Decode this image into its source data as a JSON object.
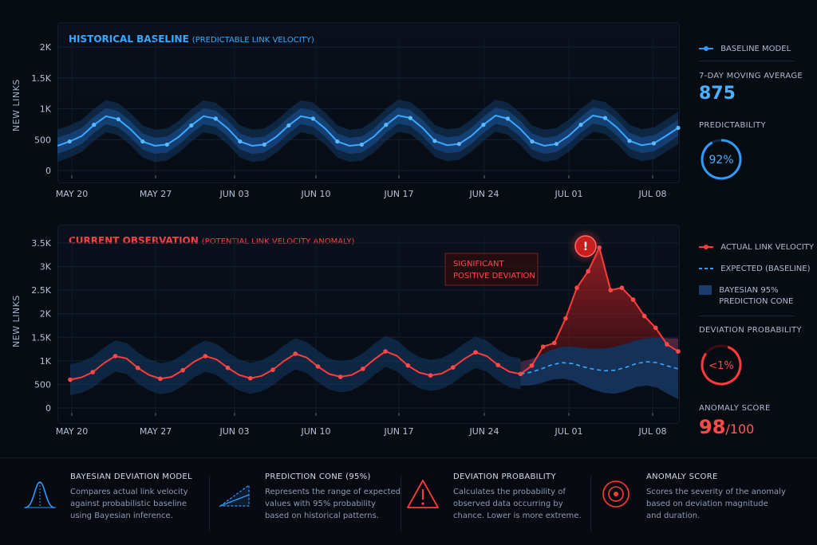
{
  "top_chart": {
    "title": "HISTORICAL BASELINE",
    "subtitle": "(PREDICTABLE LINK VELOCITY)",
    "ylabel": "NEW LINKS",
    "yticks": [
      "2K",
      "1.5K",
      "1K",
      "500",
      "0"
    ]
  },
  "bottom_chart": {
    "title": "CURRENT OBSERVATION",
    "subtitle": "(POTENTIAL LINK VELOCITY ANOMALY)",
    "ylabel": "NEW LINKS",
    "yticks": [
      "3.5K",
      "3K",
      "2.5K",
      "2K",
      "1.5K",
      "1K",
      "500",
      "0"
    ],
    "annotation_line1": "SIGNIFICANT",
    "annotation_line2": "POSITIVE DEVIATION"
  },
  "xticks": [
    "MAY 20",
    "MAY 27",
    "JUN 03",
    "JUN 10",
    "JUN 17",
    "JUN 24",
    "JUL 01",
    "JUL 08"
  ],
  "sidebar_top": {
    "legend_baseline": "BASELINE MODEL",
    "moving_avg_label": "7-DAY MOVING AVERAGE",
    "moving_avg_value": "875",
    "predictability_label": "PREDICTABILITY",
    "predictability_value": "92%",
    "predictability_fraction": 0.92
  },
  "sidebar_bottom": {
    "legend_actual": "ACTUAL LINK VELOCITY",
    "legend_expected": "EXPECTED (BASELINE)",
    "legend_cone_line1": "BAYESIAN 95%",
    "legend_cone_line2": "PREDICTION CONE",
    "deviation_label": "DEVIATION PROBABILITY",
    "deviation_value": "<1%",
    "anomaly_label": "ANOMALY SCORE",
    "anomaly_value": "98",
    "anomaly_max": "/100"
  },
  "footer": [
    {
      "title": "BAYESIAN DEVIATION MODEL",
      "desc1": "Compares actual link velocity",
      "desc2": "against probabilistic baseline",
      "desc3": "using Bayesian inference.",
      "icon": "bell-curve-icon"
    },
    {
      "title": "PREDICTION CONE (95%)",
      "desc1": "Represents the range of expected",
      "desc2": "values with 95% probability",
      "desc3": "based on historical patterns.",
      "icon": "cone-icon"
    },
    {
      "title": "DEVIATION PROBABILITY",
      "desc1": "Calculates the probability of",
      "desc2": "observed data occurring by",
      "desc3": "chance. Lower is more extreme.",
      "icon": "warning-triangle-icon"
    },
    {
      "title": "ANOMALY SCORE",
      "desc1": "Scores the severity of the anomaly",
      "desc2": "based on deviation magnitude",
      "desc3": "and duration.",
      "icon": "target-icon"
    }
  ],
  "colors": {
    "blue": "#2e9bff",
    "red": "#ff3b3b",
    "blue_band": "#1a4f8c"
  },
  "chart_data": [
    {
      "type": "line",
      "title": "HISTORICAL BASELINE (PREDICTABLE LINK VELOCITY)",
      "ylabel": "NEW LINKS",
      "ylim": [
        0,
        2000
      ],
      "x_range": [
        "MAY 20",
        "JUL 11"
      ],
      "series": [
        {
          "name": "BASELINE MODEL",
          "values": [
            400,
            470,
            560,
            740,
            880,
            830,
            670,
            470,
            400,
            420,
            550,
            730,
            880,
            840,
            680,
            470,
            400,
            420,
            550,
            730,
            880,
            840,
            680,
            470,
            400,
            420,
            550,
            740,
            890,
            850,
            690,
            480,
            410,
            430,
            560,
            740,
            890,
            840,
            680,
            470,
            400,
            430,
            560,
            740,
            890,
            850,
            690,
            480,
            410,
            440,
            560,
            690
          ]
        }
      ]
    },
    {
      "type": "line",
      "title": "CURRENT OBSERVATION (POTENTIAL LINK VELOCITY ANOMALY)",
      "ylabel": "NEW LINKS",
      "ylim": [
        0,
        3500
      ],
      "x_range": [
        "MAY 20",
        "JUL 11"
      ],
      "series": [
        {
          "name": "ACTUAL LINK VELOCITY",
          "values": [
            600,
            650,
            760,
            950,
            1100,
            1050,
            850,
            700,
            620,
            660,
            800,
            980,
            1100,
            1030,
            850,
            700,
            630,
            680,
            810,
            1000,
            1150,
            1070,
            880,
            720,
            660,
            700,
            830,
            1030,
            1200,
            1110,
            900,
            750,
            690,
            730,
            860,
            1040,
            1180,
            1100,
            910,
            770,
            720,
            900,
            1300,
            1380,
            1900,
            2550,
            2900,
            3400,
            2500,
            2550,
            2300,
            1950,
            1700,
            1350,
            1200
          ]
        },
        {
          "name": "EXPECTED (BASELINE)",
          "values": [
            720,
            760,
            830,
            920,
            960,
            940,
            870,
            820,
            790,
            800,
            860,
            940,
            980,
            960,
            890,
            830
          ]
        },
        {
          "name": "BAYESIAN 95% PREDICTION CONE",
          "lower_upper_spread_end": [
            420,
            1800
          ]
        }
      ]
    }
  ]
}
